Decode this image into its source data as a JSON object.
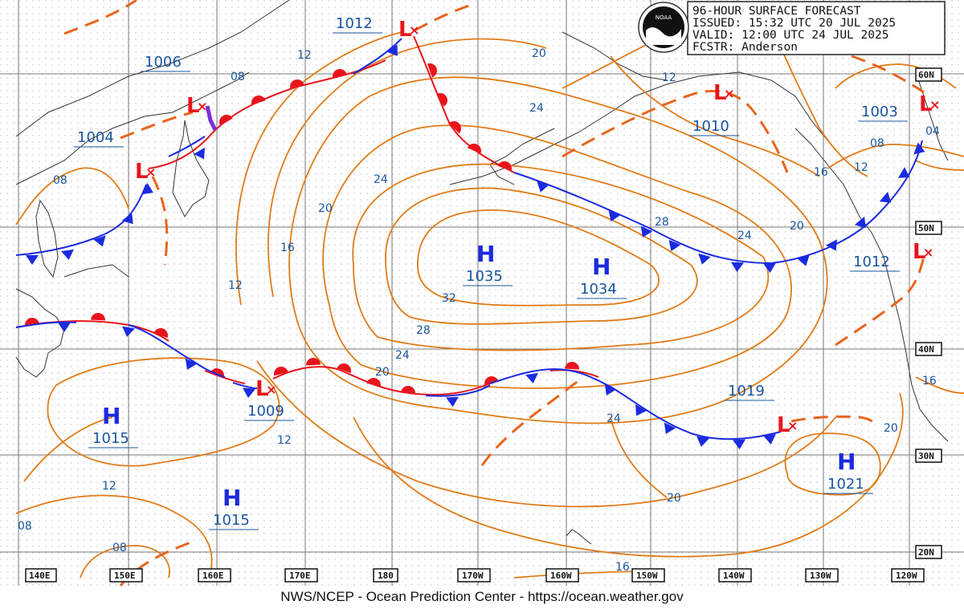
{
  "header": {
    "title": "96-HOUR SURFACE FORECAST",
    "issued": "ISSUED: 15:32 UTC 20 JUL 2025",
    "valid": "VALID:  12:00 UTC 24 JUL 2025",
    "forecaster": "FCSTR:  Anderson",
    "logo_text": "NOAA"
  },
  "footer": "NWS/NCEP - Ocean Prediction Center - https://ocean.weather.gov",
  "longitude_labels": [
    "140E",
    "150E",
    "160E",
    "170E",
    "180",
    "170W",
    "160W",
    "150W",
    "140W",
    "130W",
    "120W"
  ],
  "latitude_labels": [
    "60N",
    "50N",
    "40N",
    "30N",
    "20N"
  ],
  "pressure_centers": [
    {
      "type": "H",
      "value": "1035"
    },
    {
      "type": "H",
      "value": "1034"
    },
    {
      "type": "H",
      "value": "1015"
    },
    {
      "type": "H",
      "value": "1015"
    },
    {
      "type": "H",
      "value": "1021"
    },
    {
      "type": "L",
      "value": "1012"
    },
    {
      "type": "L",
      "value": "1006"
    },
    {
      "type": "L",
      "value": "1004"
    },
    {
      "type": "L",
      "value": "1009"
    },
    {
      "type": "L",
      "value": "1010"
    },
    {
      "type": "L",
      "value": "1003"
    },
    {
      "type": "L",
      "value": "1012"
    },
    {
      "type": "L",
      "value": "1019"
    }
  ],
  "isobar_labels": [
    "12",
    "08",
    "08",
    "24",
    "20",
    "16",
    "12",
    "32",
    "28",
    "24",
    "20",
    "12",
    "12",
    "08",
    "20",
    "24",
    "28",
    "24",
    "20",
    "16",
    "12",
    "08",
    "04",
    "20",
    "24",
    "20",
    "16",
    "16",
    "20",
    "12",
    "08"
  ],
  "colors": {
    "isobar": "#e07b18",
    "warm_front": "#e8141c",
    "cold_front": "#1a2be0",
    "occluded": "#7b2fd8",
    "label": "#1a55a0",
    "grid": "#777777",
    "land": "#333333"
  }
}
